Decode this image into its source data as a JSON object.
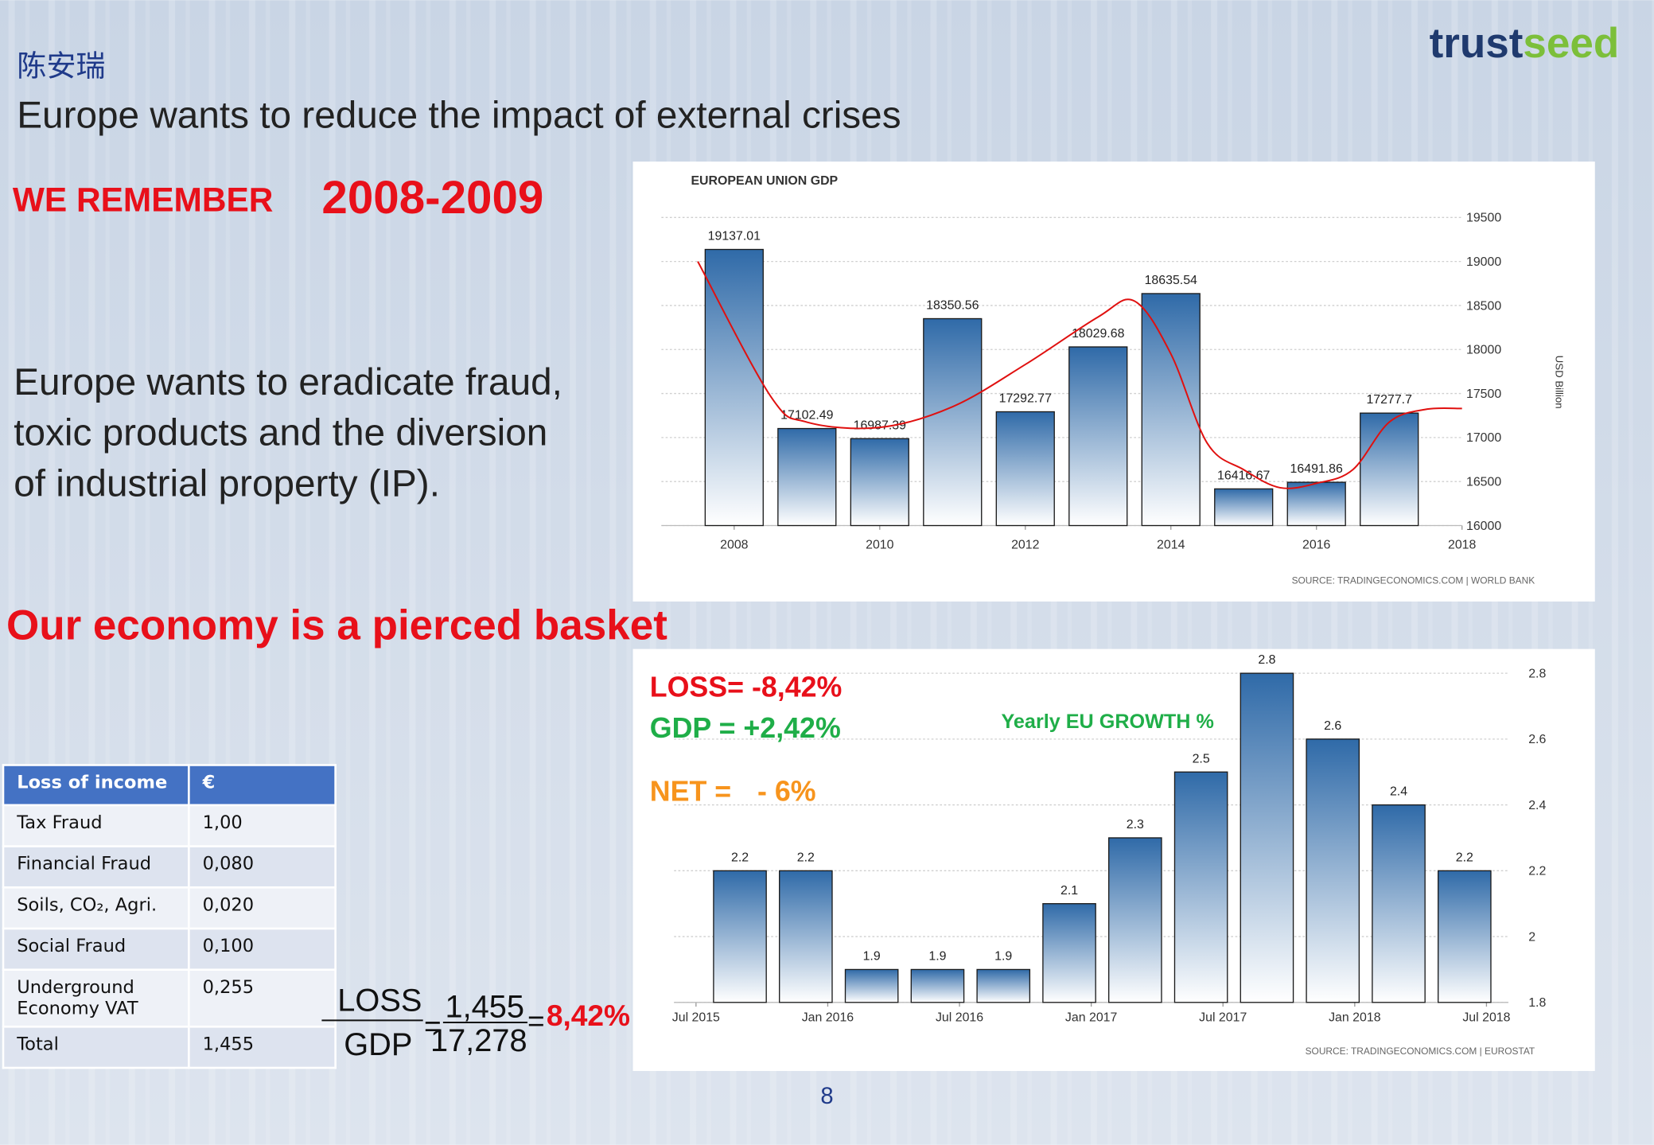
{
  "speaker": "陈安瑞",
  "title": "Europe wants to reduce the impact of external crises",
  "headline": {
    "prefix": "WE REMEMBER",
    "years": "2008-2009"
  },
  "paragraph": [
    "Europe wants to eradicate fraud,",
    "toxic products and the diversion",
    "of industrial property (IP)."
  ],
  "subheading": "Our economy is a pierced basket",
  "logo": {
    "part1": "trust",
    "part2": "seed"
  },
  "annotations": {
    "loss": "LOSS= -8,42%",
    "gdp": "GDP =  +2,42%",
    "net_label": "NET =",
    "net_value": "- 6%"
  },
  "table": {
    "header": [
      "Loss of income",
      "€"
    ],
    "rows": [
      [
        "Tax Fraud",
        "1,00"
      ],
      [
        "Financial Fraud",
        "0,080"
      ],
      [
        "Soils, CO₂, Agri.",
        "0,020"
      ],
      [
        "Social Fraud",
        "0,100"
      ],
      [
        "Underground Economy VAT",
        "0,255"
      ],
      [
        "Total",
        "1,455"
      ]
    ]
  },
  "formula": {
    "numerator_label": "LOSS",
    "denominator_label": "GDP",
    "equals": "=",
    "numerator": "1,455",
    "denominator": "17,278",
    "result": "8,42%"
  },
  "page_number": "8",
  "chart_data": [
    {
      "type": "bar",
      "title": "EUROPEAN UNION GDP",
      "y_label": "USD Billion",
      "source": "SOURCE: TRADINGECONOMICS.COM | WORLD BANK",
      "x": [
        2008,
        2009,
        2010,
        2011,
        2012,
        2013,
        2014,
        2015,
        2016,
        2017
      ],
      "values": [
        19137.01,
        17102.49,
        16987.39,
        18350.56,
        17292.77,
        18029.68,
        18635.54,
        16416.67,
        16491.86,
        17277.7
      ],
      "color": "#2f6aa8",
      "xlim": [
        2007,
        2018
      ],
      "xticks": [
        2008,
        2010,
        2012,
        2014,
        2016,
        2018
      ],
      "ylim": [
        16000,
        19500
      ],
      "yticks": [
        16000,
        16500,
        17000,
        17500,
        18000,
        18500,
        19000,
        19500
      ],
      "grid": true,
      "trend": {
        "color": "#e0100f",
        "x": [
          2007.5,
          2008.5,
          2009,
          2010,
          2011,
          2012,
          2013,
          2013.5,
          2014,
          2014.5,
          2015,
          2015.5,
          2016,
          2016.5,
          2017,
          2017.5,
          2018
        ],
        "values": [
          19000,
          17470,
          17175,
          17115,
          17350,
          17830,
          18370,
          18550,
          17950,
          16935,
          16635,
          16430,
          16480,
          16635,
          17175,
          17320,
          17330
        ]
      }
    },
    {
      "type": "bar",
      "annotation": "Yearly EU GROWTH %",
      "source": "SOURCE: TRADINGECONOMICS.COM | EUROSTAT",
      "x": [
        "2015-09",
        "2015-12",
        "2016-03",
        "2016-06",
        "2016-09",
        "2016-12",
        "2017-03",
        "2017-06",
        "2017-09",
        "2017-12",
        "2018-03",
        "2018-06"
      ],
      "values": [
        2.2,
        2.2,
        1.9,
        1.9,
        1.9,
        2.1,
        2.3,
        2.5,
        2.8,
        2.6,
        2.4,
        2.2
      ],
      "color": "#2f6aa8",
      "xlim": [
        "2015-06",
        "2018-08"
      ],
      "xticks": [
        {
          "value": "2015-07",
          "label": "Jul 2015"
        },
        {
          "value": "2016-01",
          "label": "Jan 2016"
        },
        {
          "value": "2016-07",
          "label": "Jul 2016"
        },
        {
          "value": "2017-01",
          "label": "Jan 2017"
        },
        {
          "value": "2017-07",
          "label": "Jul 2017"
        },
        {
          "value": "2018-01",
          "label": "Jan 2018"
        },
        {
          "value": "2018-07",
          "label": "Jul 2018"
        }
      ],
      "ylim": [
        1.8,
        2.8
      ],
      "yticks": [
        1.8,
        2,
        2.2,
        2.4,
        2.6,
        2.8
      ],
      "grid": true
    }
  ]
}
